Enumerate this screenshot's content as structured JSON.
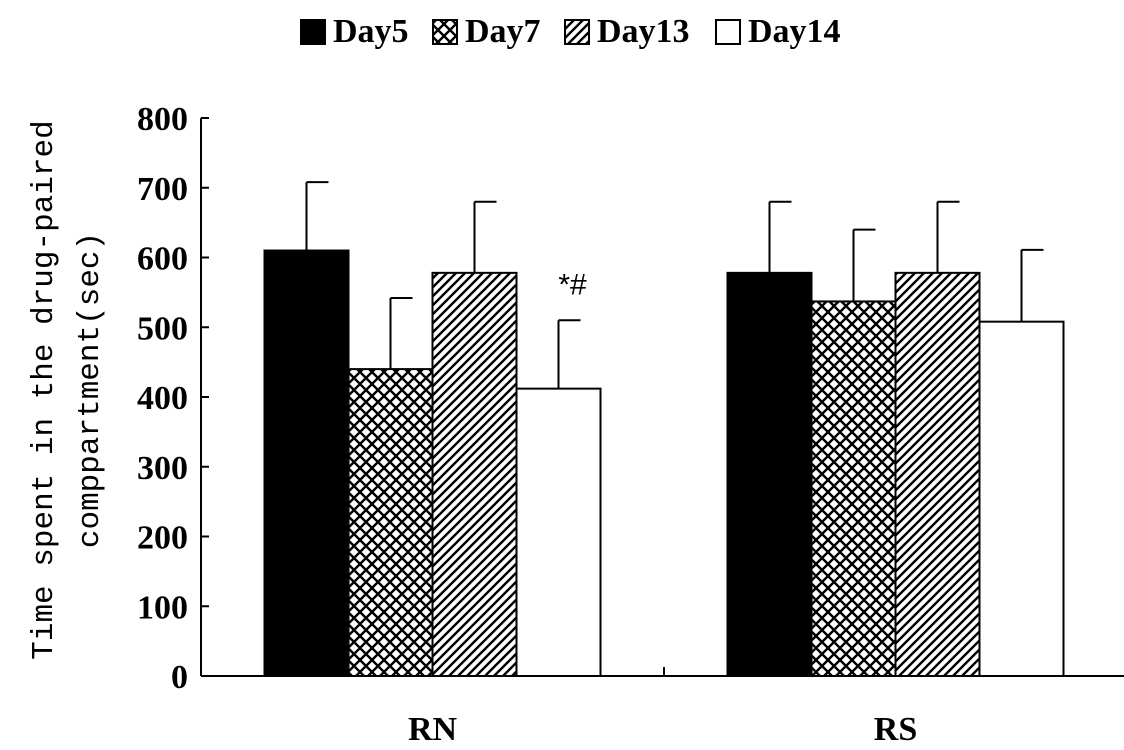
{
  "chart_data": {
    "type": "bar",
    "title": "",
    "categories": [
      "RN",
      "RS"
    ],
    "series": [
      {
        "name": "Day5",
        "values": [
          610,
          578
        ],
        "errors": [
          98,
          102
        ],
        "pattern": "solid"
      },
      {
        "name": "Day7",
        "values": [
          440,
          537
        ],
        "errors": [
          102,
          103
        ],
        "pattern": "crosshatch"
      },
      {
        "name": "Day13",
        "values": [
          578,
          578
        ],
        "errors": [
          102,
          102
        ],
        "pattern": "diagonal"
      },
      {
        "name": "Day14",
        "values": [
          412,
          508
        ],
        "errors": [
          98,
          103
        ],
        "pattern": "empty"
      }
    ],
    "ylabel_lines": [
      "Time spent in the drug-paired",
      "comppartment(sec)"
    ],
    "xlabel": "",
    "ylim": [
      0,
      800
    ],
    "yticks": [
      "0",
      "100",
      "200",
      "300",
      "400",
      "500",
      "600",
      "700",
      "800"
    ],
    "legend_position": "top",
    "grid": false,
    "annotations": [
      {
        "text": "*#",
        "category": "RN",
        "series": "Day14"
      }
    ],
    "colors": {
      "bar_fill": "#000000",
      "bar_stroke": "#000000",
      "background": "#ffffff"
    }
  }
}
